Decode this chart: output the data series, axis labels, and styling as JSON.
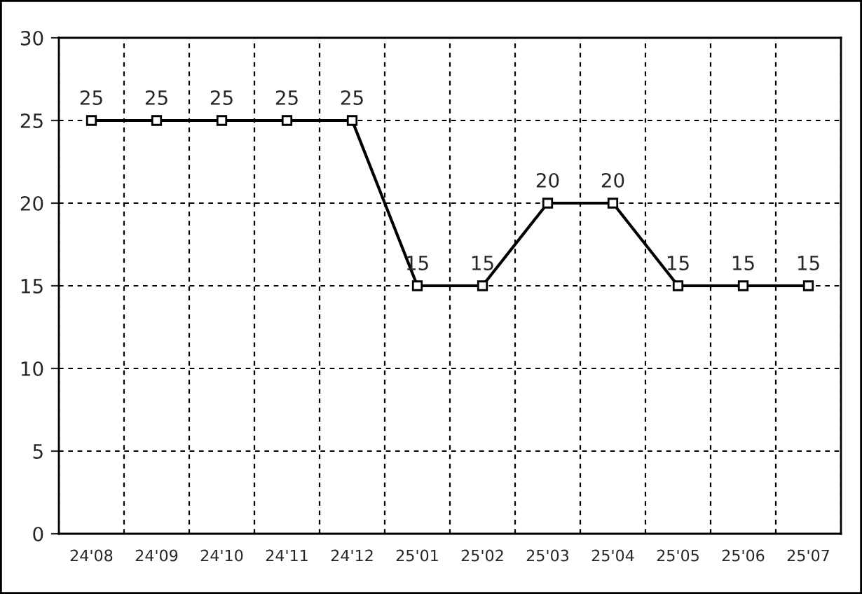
{
  "chart_data": {
    "type": "line",
    "categories": [
      "24'08",
      "24'09",
      "24'10",
      "24'11",
      "24'12",
      "25'01",
      "25'02",
      "25'03",
      "25'04",
      "25'05",
      "25'06",
      "25'07"
    ],
    "series": [
      {
        "color": "#000000",
        "values": [
          25,
          25,
          25,
          25,
          25,
          15,
          15,
          20,
          20,
          15,
          15,
          15
        ]
      }
    ],
    "ylim": [
      0,
      30
    ],
    "yticks": [
      0,
      5,
      10,
      15,
      20,
      25,
      30
    ],
    "grid": true,
    "marker": "square",
    "line_style": "solid",
    "data_labels": true
  }
}
